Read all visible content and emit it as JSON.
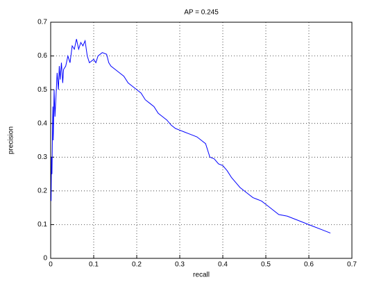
{
  "chart_data": {
    "type": "line",
    "title": "AP = 0.245",
    "x_label": "recall",
    "y_label": "precision",
    "x": [
      0.001,
      0.002,
      0.003,
      0.005,
      0.006,
      0.008,
      0.01,
      0.012,
      0.015,
      0.018,
      0.02,
      0.022,
      0.025,
      0.028,
      0.03,
      0.035,
      0.04,
      0.045,
      0.05,
      0.055,
      0.06,
      0.065,
      0.07,
      0.075,
      0.08,
      0.085,
      0.09,
      0.1,
      0.105,
      0.11,
      0.12,
      0.13,
      0.135,
      0.14,
      0.15,
      0.16,
      0.17,
      0.18,
      0.19,
      0.2,
      0.21,
      0.22,
      0.23,
      0.24,
      0.25,
      0.26,
      0.27,
      0.28,
      0.29,
      0.3,
      0.31,
      0.32,
      0.33,
      0.34,
      0.35,
      0.36,
      0.37,
      0.38,
      0.39,
      0.4,
      0.41,
      0.42,
      0.43,
      0.44,
      0.45,
      0.46,
      0.47,
      0.48,
      0.49,
      0.5,
      0.51,
      0.52,
      0.53,
      0.55,
      0.57,
      0.59,
      0.61,
      0.63,
      0.65
    ],
    "values": [
      0.17,
      0.3,
      0.25,
      0.45,
      0.35,
      0.5,
      0.42,
      0.47,
      0.55,
      0.5,
      0.57,
      0.53,
      0.58,
      0.52,
      0.56,
      0.57,
      0.6,
      0.58,
      0.63,
      0.62,
      0.65,
      0.62,
      0.64,
      0.63,
      0.645,
      0.6,
      0.58,
      0.59,
      0.58,
      0.6,
      0.61,
      0.605,
      0.58,
      0.57,
      0.56,
      0.55,
      0.54,
      0.52,
      0.51,
      0.5,
      0.49,
      0.47,
      0.46,
      0.45,
      0.43,
      0.42,
      0.41,
      0.395,
      0.385,
      0.38,
      0.375,
      0.37,
      0.365,
      0.36,
      0.35,
      0.34,
      0.3,
      0.295,
      0.28,
      0.275,
      0.26,
      0.24,
      0.225,
      0.21,
      0.2,
      0.19,
      0.18,
      0.175,
      0.17,
      0.16,
      0.15,
      0.14,
      0.13,
      0.125,
      0.115,
      0.105,
      0.095,
      0.085,
      0.075
    ],
    "color": "#0000ff",
    "xlim": [
      0,
      0.7
    ],
    "xticks": [
      0,
      0.1,
      0.2,
      0.3,
      0.4,
      0.5,
      0.6,
      0.7
    ],
    "ylim": [
      0,
      0.7
    ],
    "yticks": [
      0,
      0.1,
      0.2,
      0.3,
      0.4,
      0.5,
      0.6,
      0.7
    ],
    "grid": true
  }
}
